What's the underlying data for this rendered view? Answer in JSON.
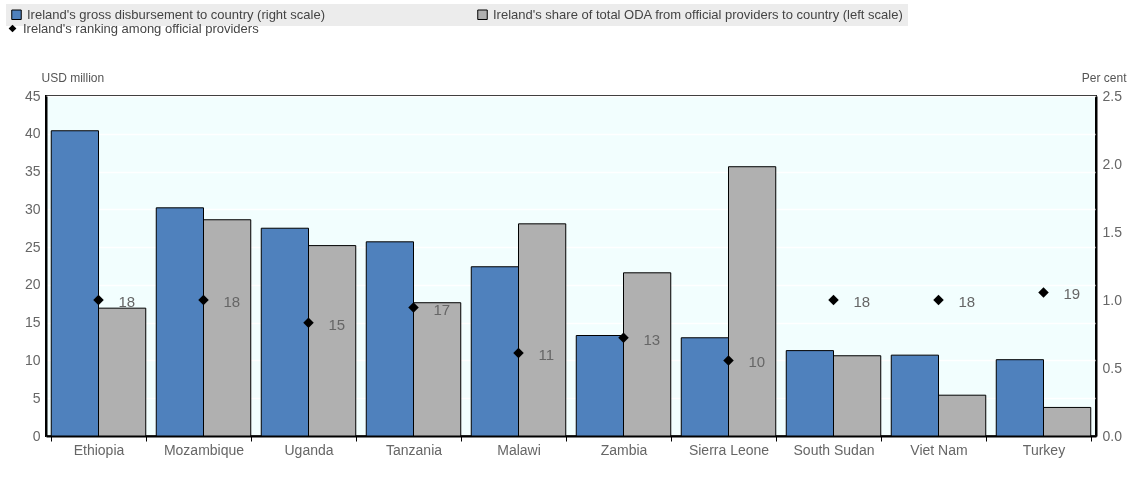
{
  "chart_data": {
    "type": "bar",
    "categories": [
      "Ethiopia",
      "Mozambique",
      "Uganda",
      "Tanzania",
      "Malawi",
      "Zambia",
      "Sierra Leone",
      "South Sudan",
      "Viet Nam",
      "Turkey"
    ],
    "ylabel": "USD million",
    "y2label": "Per cent",
    "ylim": [
      0,
      45
    ],
    "yticks": [
      0,
      5,
      10,
      15,
      20,
      25,
      30,
      35,
      40,
      45
    ],
    "y2lim": [
      0,
      2.5
    ],
    "y2ticks": [
      {
        "value": 0,
        "label": "0.0"
      },
      {
        "value": 0.5,
        "label": "0.5"
      },
      {
        "value": 1,
        "label": "1.0"
      },
      {
        "value": 1.5,
        "label": "1.5"
      },
      {
        "value": 2,
        "label": "2.0"
      },
      {
        "value": 2.5,
        "label": "2.5"
      }
    ],
    "grid": "y",
    "legend": "top",
    "series": [
      {
        "name": "Ireland's gross disbursement to country (right scale)",
        "color": "#4f81bd",
        "values": [
          40.4,
          30.2,
          27.5,
          25.7,
          22.4,
          13.3,
          13.0,
          11.3,
          10.7,
          10.1
        ]
      },
      {
        "name": "Ireland's share of total ODA from official providers to country (left scale)",
        "color": "#b0b0b0",
        "axis": "y2",
        "values": [
          0.94,
          1.59,
          1.4,
          0.98,
          1.56,
          1.2,
          1.98,
          0.59,
          0.3,
          0.21
        ]
      },
      {
        "name": "Ireland's ranking among official providers",
        "type": "scatter",
        "marker": "diamond",
        "color": "#000000",
        "values": [
          18,
          18,
          15,
          17,
          11,
          13,
          10,
          18,
          18,
          19
        ],
        "value_labels": [
          "18",
          "18",
          "15",
          "17",
          "11",
          "13",
          "10",
          "18",
          "18",
          "19"
        ]
      }
    ]
  }
}
